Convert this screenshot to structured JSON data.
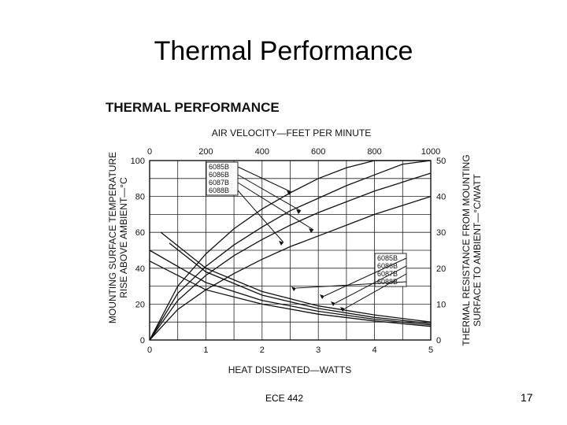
{
  "slide": {
    "title": "Thermal Performance",
    "footer": "ECE 442",
    "page_number": "17"
  },
  "chart_data": {
    "type": "line",
    "title": "THERMAL PERFORMANCE",
    "xlabel": "HEAT DISSIPATED—WATTS",
    "ylabel_left": [
      "MOUNTING SURFACE TEMPERATURE",
      "RISE ABOVE AMBIENT—°C"
    ],
    "ylabel_right": [
      "THERMAL RESISTANCE FROM MOUNTING",
      "SURFACE TO AMBIENT—°C/WATT"
    ],
    "top_axis_label": "AIR VELOCITY—FEET PER MINUTE",
    "x_ticks": [
      "0",
      "1",
      "2",
      "3",
      "4",
      "5"
    ],
    "y_left_ticks": [
      "0",
      "20",
      "40",
      "60",
      "80",
      "100"
    ],
    "y_right_ticks": [
      "0",
      "10",
      "20",
      "30",
      "40",
      "50"
    ],
    "top_ticks": [
      "0",
      "200",
      "400",
      "600",
      "800",
      "1000"
    ],
    "xlim": [
      0,
      5
    ],
    "ylim_left": [
      0,
      100
    ],
    "ylim_right": [
      0,
      50
    ],
    "top_lim": [
      0,
      1000
    ],
    "grid": true,
    "temperature_series": [
      {
        "name": "6085B",
        "x": [
          0,
          0.5,
          1,
          1.5,
          2,
          2.5,
          3,
          3.5,
          4,
          4.5,
          5
        ],
        "y": [
          0,
          30,
          48,
          62,
          73,
          82,
          90,
          96,
          100,
          100,
          100
        ]
      },
      {
        "name": "6086B",
        "x": [
          0,
          0.5,
          1,
          1.5,
          2,
          2.5,
          3,
          3.5,
          4,
          4.5,
          5
        ],
        "y": [
          0,
          26,
          41,
          53,
          63,
          72,
          79,
          86,
          92,
          98,
          100
        ]
      },
      {
        "name": "6087B",
        "x": [
          0,
          0.5,
          1,
          1.5,
          2,
          2.5,
          3,
          3.5,
          4,
          4.5,
          5
        ],
        "y": [
          0,
          22,
          36,
          47,
          56,
          64,
          71,
          77,
          83,
          88,
          93
        ]
      },
      {
        "name": "6088B",
        "x": [
          0,
          0.5,
          1,
          1.5,
          2,
          2.5,
          3,
          3.5,
          4,
          4.5,
          5
        ],
        "y": [
          0,
          17,
          28,
          37,
          45,
          52,
          58,
          64,
          70,
          75,
          80
        ]
      }
    ],
    "resistance_series": [
      {
        "name": "6085B",
        "air_velocity": [
          40,
          200,
          400,
          600,
          800,
          1000
        ],
        "y": [
          30,
          20,
          13.5,
          9.5,
          7,
          5
        ]
      },
      {
        "name": "6086B",
        "air_velocity": [
          70,
          200,
          400,
          600,
          800,
          1000
        ],
        "y": [
          27,
          19,
          12.5,
          8.8,
          6.3,
          4.6
        ]
      },
      {
        "name": "6087B",
        "air_velocity": [
          0,
          200,
          400,
          600,
          800,
          1000
        ],
        "y": [
          25,
          16,
          11,
          8,
          5.8,
          4.2
        ]
      },
      {
        "name": "6088B",
        "air_velocity": [
          0,
          200,
          400,
          600,
          800,
          1000
        ],
        "y": [
          22,
          14,
          10,
          7.2,
          5.3,
          3.8
        ]
      }
    ],
    "legend_temperature": [
      "6085B",
      "6086B",
      "6087B",
      "6088B"
    ],
    "legend_resistance": [
      "6085B",
      "6086B",
      "6087B",
      "6088B"
    ]
  }
}
